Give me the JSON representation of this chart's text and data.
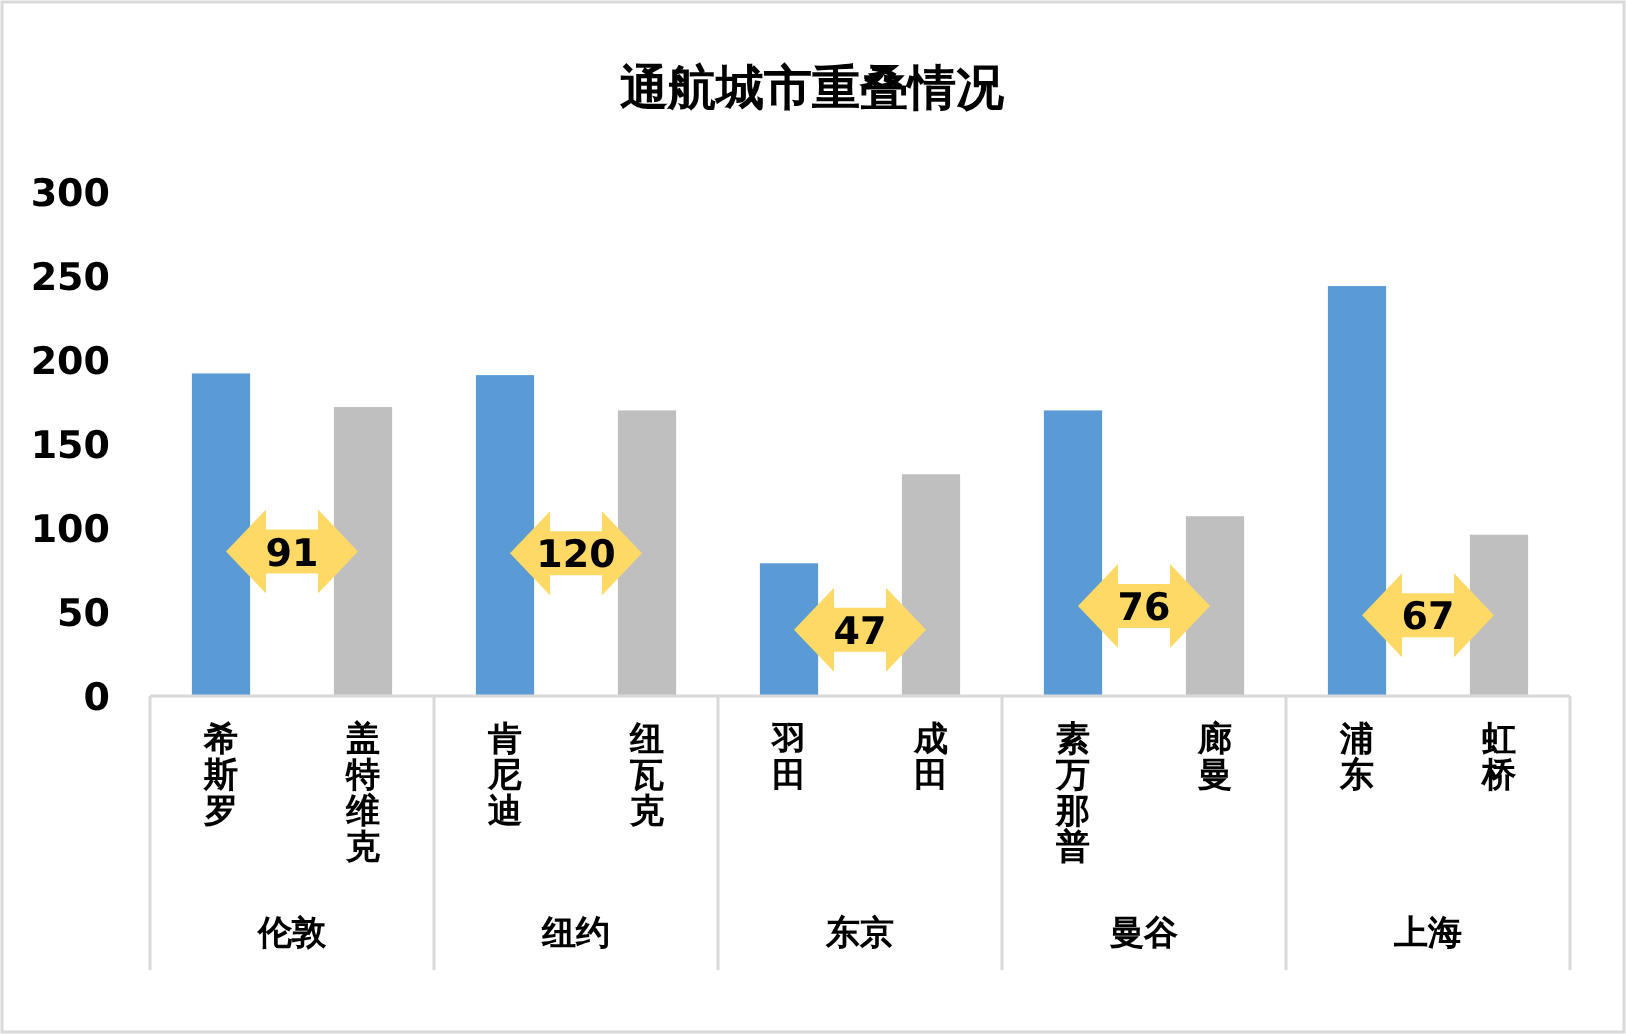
{
  "chart_data": {
    "type": "bar",
    "title": "通航城市重叠情况",
    "categories": [
      "希斯罗",
      "盖特维克",
      "肯尼迪",
      "纽瓦克",
      "羽田",
      "成田",
      "素万那普",
      "廊曼",
      "浦东",
      "虹桥"
    ],
    "values": [
      192,
      172,
      191,
      170,
      79,
      132,
      170,
      107,
      244,
      96
    ],
    "colors": [
      "#5b9bd5",
      "#bfbfbf",
      "#5b9bd5",
      "#bfbfbf",
      "#5b9bd5",
      "#bfbfbf",
      "#5b9bd5",
      "#bfbfbf",
      "#5b9bd5",
      "#bfbfbf"
    ],
    "ylim": [
      0,
      300
    ],
    "yticks": [
      0,
      50,
      100,
      150,
      200,
      250,
      300
    ],
    "annotations": [
      "91",
      "伦敦",
      "120",
      "纽约",
      "47",
      "东京",
      "76",
      "曼谷",
      "67",
      "上海"
    ]
  }
}
